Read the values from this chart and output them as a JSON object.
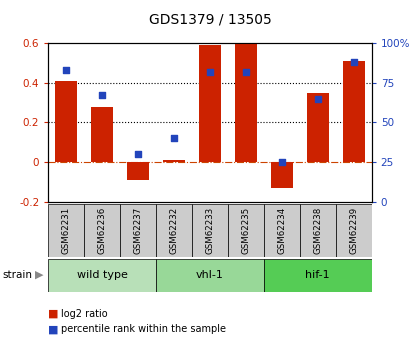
{
  "title": "GDS1379 / 13505",
  "samples": [
    "GSM62231",
    "GSM62236",
    "GSM62237",
    "GSM62232",
    "GSM62233",
    "GSM62235",
    "GSM62234",
    "GSM62238",
    "GSM62239"
  ],
  "log2_ratio": [
    0.41,
    0.28,
    -0.09,
    0.01,
    0.59,
    0.61,
    -0.13,
    0.35,
    0.51
  ],
  "percentile_rank": [
    83,
    67,
    30,
    40,
    82,
    82,
    25,
    65,
    88
  ],
  "groups": [
    {
      "label": "wild type",
      "start": 0,
      "end": 3,
      "color": "#b8e0b8"
    },
    {
      "label": "vhl-1",
      "start": 3,
      "end": 6,
      "color": "#98d898"
    },
    {
      "label": "hif-1",
      "start": 6,
      "end": 9,
      "color": "#55cc55"
    }
  ],
  "ylim_left": [
    -0.2,
    0.6
  ],
  "ylim_right": [
    0,
    100
  ],
  "bar_color": "#cc2200",
  "dot_color": "#2244bb",
  "zero_line_color": "#cc4400",
  "grid_color": "#000000",
  "bg_color": "#ffffff",
  "plot_bg": "#ffffff",
  "tick_color_left": "#cc2200",
  "tick_color_right": "#2244bb",
  "left_ticks": [
    -0.2,
    0,
    0.2,
    0.4,
    0.6
  ],
  "right_ticks": [
    0,
    25,
    50,
    75,
    100
  ],
  "right_tick_labels": [
    "0",
    "25",
    "50",
    "75",
    "100%"
  ],
  "sample_label_color": "#888888",
  "sample_bg": "#cccccc",
  "strain_label": "strain",
  "legend_items": [
    "log2 ratio",
    "percentile rank within the sample"
  ]
}
